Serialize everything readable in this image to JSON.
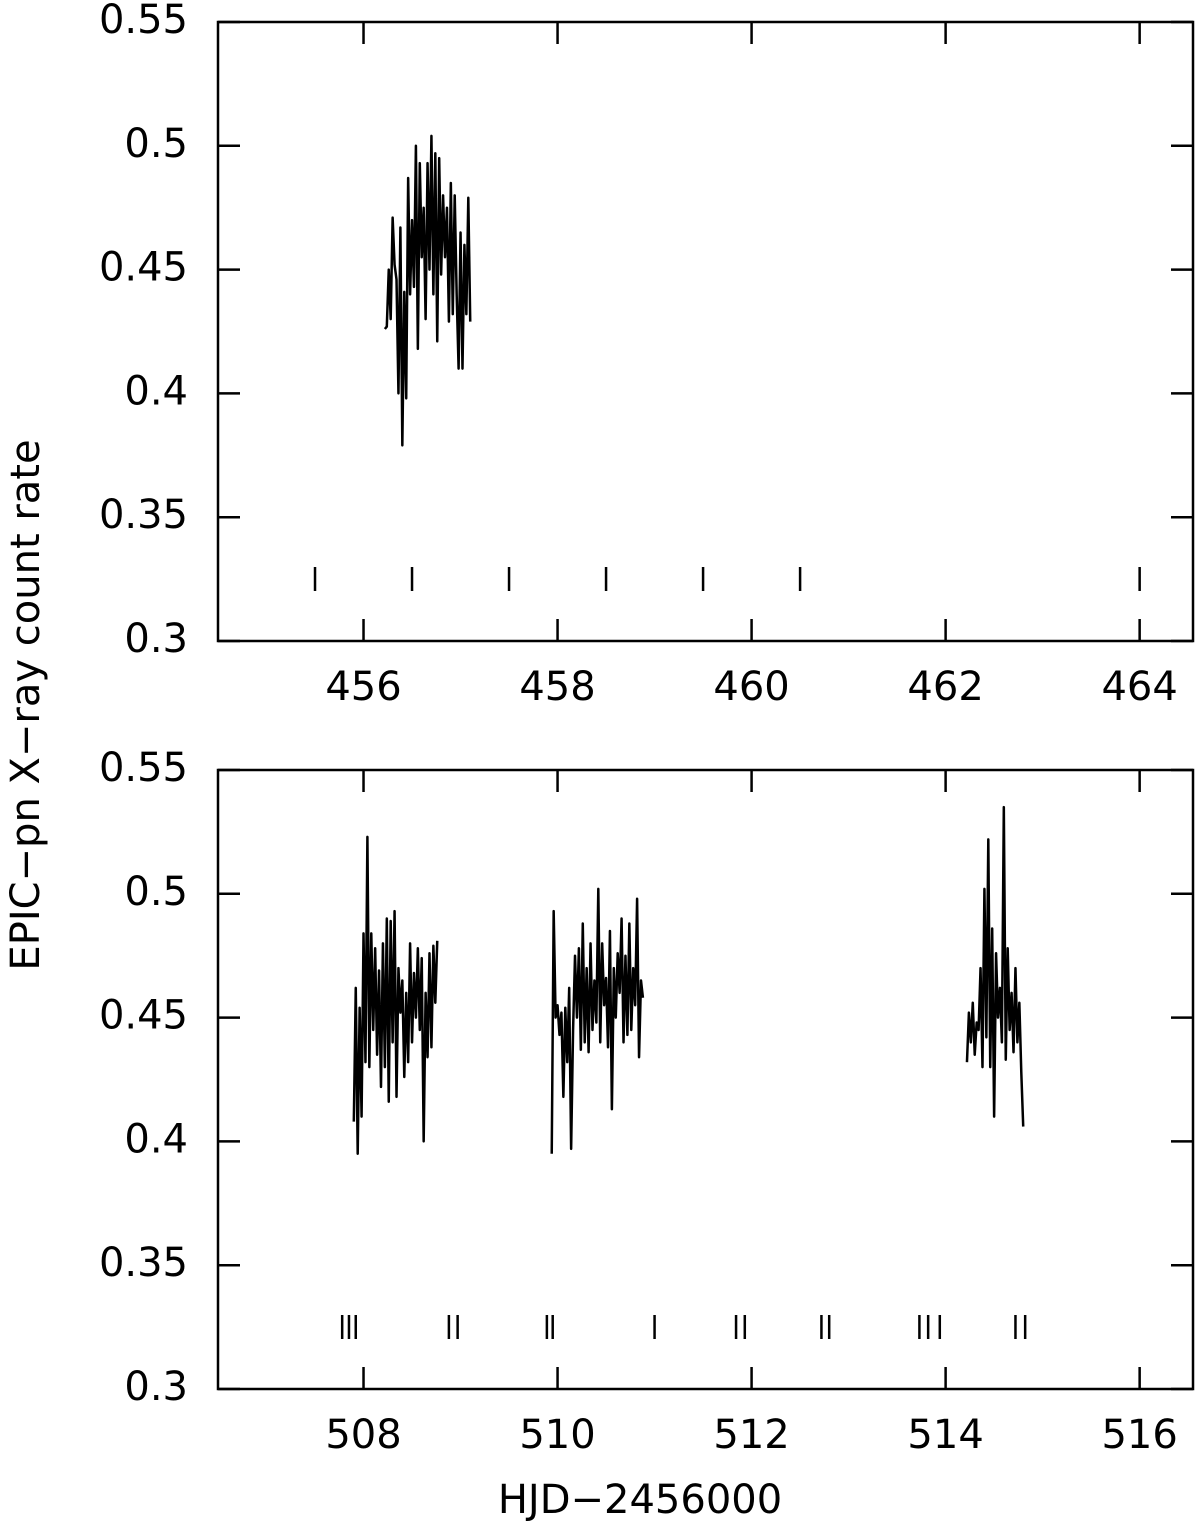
{
  "chart_data": [
    {
      "type": "line",
      "ylabel": "EPIC−pn X−ray count rate",
      "color": "#000000",
      "xlim": [
        454.5,
        464.55
      ],
      "xticks": [
        456,
        458,
        460,
        462,
        464
      ],
      "ylim": [
        0.3,
        0.55
      ],
      "yticks": [
        0.3,
        0.35,
        0.4,
        0.45,
        0.5,
        0.55
      ],
      "x": [
        456.22,
        456.24,
        456.26,
        456.28,
        456.3,
        456.32,
        456.34,
        456.36,
        456.38,
        456.4,
        456.42,
        456.44,
        456.46,
        456.48,
        456.5,
        456.52,
        456.54,
        456.56,
        456.58,
        456.6,
        456.62,
        456.64,
        456.66,
        456.68,
        456.7,
        456.72,
        456.74,
        456.76,
        456.78,
        456.8,
        456.82,
        456.84,
        456.86,
        456.88,
        456.9,
        456.92,
        456.94,
        456.96,
        456.98,
        457.0,
        457.02,
        457.04,
        457.06,
        457.08,
        457.1
      ],
      "values": [
        0.426,
        0.427,
        0.45,
        0.43,
        0.471,
        0.452,
        0.446,
        0.4,
        0.467,
        0.379,
        0.441,
        0.398,
        0.487,
        0.44,
        0.47,
        0.443,
        0.5,
        0.418,
        0.493,
        0.455,
        0.475,
        0.43,
        0.493,
        0.45,
        0.504,
        0.44,
        0.497,
        0.421,
        0.495,
        0.448,
        0.48,
        0.455,
        0.475,
        0.429,
        0.485,
        0.432,
        0.48,
        0.44,
        0.41,
        0.465,
        0.41,
        0.46,
        0.432,
        0.479,
        0.429
      ],
      "markers": [
        455.5,
        456.5,
        457.5,
        458.5,
        459.5,
        460.5,
        464.0
      ]
    },
    {
      "type": "line",
      "xlabel": "HJD−2456000",
      "color": "#000000",
      "xlim": [
        506.5,
        516.55
      ],
      "xticks": [
        508,
        510,
        512,
        514,
        516
      ],
      "ylim": [
        0.3,
        0.55
      ],
      "yticks": [
        0.3,
        0.35,
        0.4,
        0.45,
        0.5,
        0.55
      ],
      "x": [
        507.9,
        507.92,
        507.94,
        507.96,
        507.98,
        508.0,
        508.02,
        508.04,
        508.06,
        508.08,
        508.1,
        508.12,
        508.14,
        508.16,
        508.18,
        508.2,
        508.22,
        508.24,
        508.26,
        508.28,
        508.3,
        508.32,
        508.34,
        508.36,
        508.38,
        508.4,
        508.42,
        508.44,
        508.46,
        508.48,
        508.5,
        508.52,
        508.54,
        508.56,
        508.58,
        508.6,
        508.62,
        508.64,
        508.66,
        508.68,
        508.7,
        508.72,
        508.74,
        508.76,
        509.3,
        509.94,
        509.96,
        509.98,
        510.0,
        510.02,
        510.04,
        510.06,
        510.08,
        510.1,
        510.12,
        510.14,
        510.16,
        510.18,
        510.2,
        510.22,
        510.24,
        510.26,
        510.28,
        510.3,
        510.32,
        510.34,
        510.36,
        510.38,
        510.4,
        510.42,
        510.44,
        510.46,
        510.48,
        510.5,
        510.52,
        510.54,
        510.56,
        510.58,
        510.6,
        510.62,
        510.64,
        510.66,
        510.68,
        510.7,
        510.72,
        510.74,
        510.76,
        510.78,
        510.8,
        510.82,
        510.84,
        510.86,
        510.88,
        512.5,
        514.22,
        514.24,
        514.26,
        514.28,
        514.3,
        514.32,
        514.34,
        514.36,
        514.38,
        514.4,
        514.42,
        514.44,
        514.46,
        514.48,
        514.5,
        514.52,
        514.54,
        514.56,
        514.58,
        514.6,
        514.62,
        514.64,
        514.66,
        514.68,
        514.7,
        514.72,
        514.74,
        514.76,
        514.78,
        514.8
      ],
      "values": [
        0.408,
        0.462,
        0.395,
        0.454,
        0.41,
        0.484,
        0.432,
        0.523,
        0.43,
        0.484,
        0.445,
        0.478,
        0.435,
        0.469,
        0.422,
        0.48,
        0.43,
        0.49,
        0.416,
        0.489,
        0.44,
        0.493,
        0.418,
        0.47,
        0.452,
        0.465,
        0.426,
        0.46,
        0.432,
        0.48,
        0.44,
        0.468,
        0.45,
        0.478,
        0.445,
        0.474,
        0.4,
        0.46,
        0.434,
        0.476,
        0.438,
        0.479,
        0.456,
        0.481,
        null,
        0.395,
        0.493,
        0.45,
        0.455,
        0.443,
        0.452,
        0.418,
        0.454,
        0.432,
        0.462,
        0.397,
        0.445,
        0.475,
        0.45,
        0.478,
        0.437,
        0.488,
        0.44,
        0.47,
        0.436,
        0.48,
        0.445,
        0.465,
        0.448,
        0.502,
        0.44,
        0.48,
        0.455,
        0.466,
        0.438,
        0.485,
        0.413,
        0.47,
        0.45,
        0.476,
        0.46,
        0.49,
        0.44,
        0.475,
        0.443,
        0.488,
        0.445,
        0.47,
        0.455,
        0.498,
        0.434,
        0.465,
        0.458,
        null,
        0.432,
        0.452,
        0.44,
        0.456,
        0.435,
        0.448,
        0.445,
        0.47,
        0.43,
        0.502,
        0.442,
        0.522,
        0.43,
        0.486,
        0.41,
        0.476,
        0.45,
        0.462,
        0.44,
        0.535,
        0.433,
        0.478,
        0.445,
        0.46,
        0.436,
        0.47,
        0.44,
        0.456,
        0.428,
        0.406
      ],
      "markers": [
        507.78,
        507.85,
        507.92,
        508.88,
        508.97,
        509.89,
        509.95,
        511.0,
        511.84,
        511.93,
        512.72,
        512.8,
        513.73,
        513.82,
        513.94,
        514.72,
        514.82
      ]
    }
  ]
}
